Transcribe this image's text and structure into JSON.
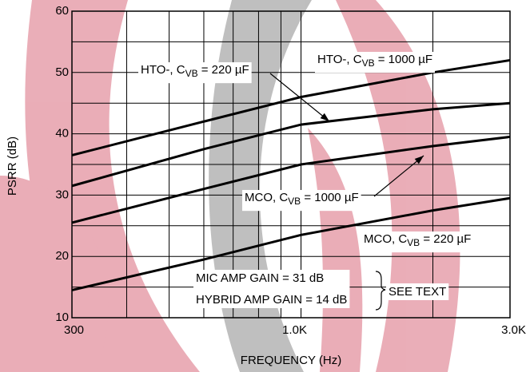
{
  "chart_data": {
    "type": "line",
    "x_label": "FREQUENCY (Hz)",
    "y_label": "PSRR (dB)",
    "log_x": true,
    "grid": true,
    "xlim": [
      300,
      3000
    ],
    "xticks": [
      300,
      {
        "value": 1000,
        "label": "1.0K"
      },
      {
        "value": 3000,
        "label": "3.0K"
      }
    ],
    "x_grid": [
      400,
      500,
      600,
      700,
      800,
      900,
      1000,
      2000,
      3000
    ],
    "ylim": [
      10,
      60
    ],
    "yticks": [
      10,
      20,
      30,
      40,
      50,
      60
    ],
    "y_grid": [
      15,
      25,
      35,
      45,
      55
    ],
    "x": [
      300,
      600,
      1000,
      2000,
      3000
    ],
    "series": [
      {
        "label": {
          "text": "HTO-, C",
          "sub": "VB",
          "rest": " = 1000 µF"
        },
        "color": "#000000",
        "values": [
          36.5,
          42,
          46,
          50,
          52
        ]
      },
      {
        "label": {
          "text": "HTO-, C",
          "sub": "VB",
          "rest": " = 220 µF"
        },
        "color": "#000000",
        "values": [
          31.5,
          37.5,
          41.5,
          44,
          45
        ]
      },
      {
        "label": {
          "text": "MCO, C",
          "sub": "VB",
          "rest": " = 1000 µF"
        },
        "color": "#000000",
        "values": [
          25.5,
          31,
          35,
          38,
          39.5
        ]
      },
      {
        "label": {
          "text": "MCO, C",
          "sub": "VB",
          "rest": " = 220 µF"
        },
        "color": "#000000",
        "values": [
          14.5,
          19.5,
          23.5,
          27.5,
          29.5
        ]
      }
    ],
    "notes": [
      "MIC AMP GAIN = 31 dB",
      "HYBRID AMP GAIN = 14 dB"
    ],
    "note_ref": "SEE TEXT"
  }
}
